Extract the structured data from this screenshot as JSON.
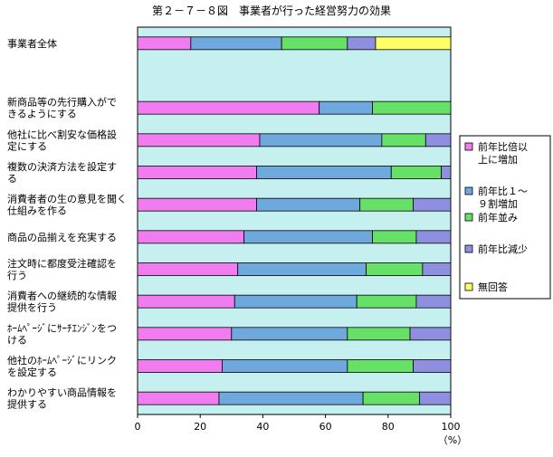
{
  "chart_data": {
    "type": "bar",
    "orientation": "horizontal",
    "stacked": true,
    "title": "第２－７－８図　事業者が行った経営努力の効果",
    "xlabel": "（%）",
    "xlim": [
      0,
      100
    ],
    "xticks": [
      "0",
      "20",
      "40",
      "60",
      "80",
      "100"
    ],
    "grid": false,
    "legend_position": "right",
    "categories": [
      [
        "事業者全体"
      ],
      [
        "新商品等の先行購入がで",
        "きるようにする"
      ],
      [
        "他社に比べ割安な価格設",
        "定にする"
      ],
      [
        "複数の決済方法を設定す",
        "る"
      ],
      [
        "消費者者の生の意見を聞く",
        "仕組みを作る"
      ],
      [
        "商品の品揃えを充実する"
      ],
      [
        "注文時に都度受注確認を",
        "行う"
      ],
      [
        "消費者への継続的な情報",
        "提供を行う"
      ],
      [
        "ﾎｰﾑﾍﾟｰｼﾞにｻｰﾁｴﾝｼﾞﾝをつ",
        "ける"
      ],
      [
        "他社のﾎｰﾑﾍﾟｰｼﾞにリンク",
        "を設定する"
      ],
      [
        "わかりやすい商品情報を",
        "提供する"
      ]
    ],
    "row_slots": [
      0,
      2,
      3,
      4,
      5,
      6,
      7,
      8,
      9,
      10,
      11
    ],
    "series": [
      {
        "name": [
          "前年比倍以",
          "上に増加"
        ],
        "color": "#f07cf0",
        "values": [
          17,
          58,
          39,
          38,
          38,
          34,
          32,
          31,
          30,
          27,
          26
        ]
      },
      {
        "name": [
          "前年比１～",
          "９割増加"
        ],
        "color": "#6fa8dc",
        "values": [
          29,
          17,
          39,
          43,
          33,
          41,
          41,
          39,
          37,
          40,
          46
        ]
      },
      {
        "name": [
          "前年並み"
        ],
        "color": "#66e066",
        "values": [
          21,
          25,
          14,
          16,
          17,
          14,
          18,
          19,
          20,
          21,
          18
        ]
      },
      {
        "name": [
          "前年比減少"
        ],
        "color": "#8f8fe0",
        "values": [
          9,
          0,
          8,
          3,
          12,
          11,
          9,
          11,
          13,
          12,
          10
        ]
      },
      {
        "name": [
          "無回答"
        ],
        "color": "#ffff66",
        "values": [
          24,
          0,
          0,
          0,
          0,
          0,
          0,
          0,
          0,
          0,
          0
        ]
      }
    ],
    "plot_background": "#c6f0f0"
  }
}
